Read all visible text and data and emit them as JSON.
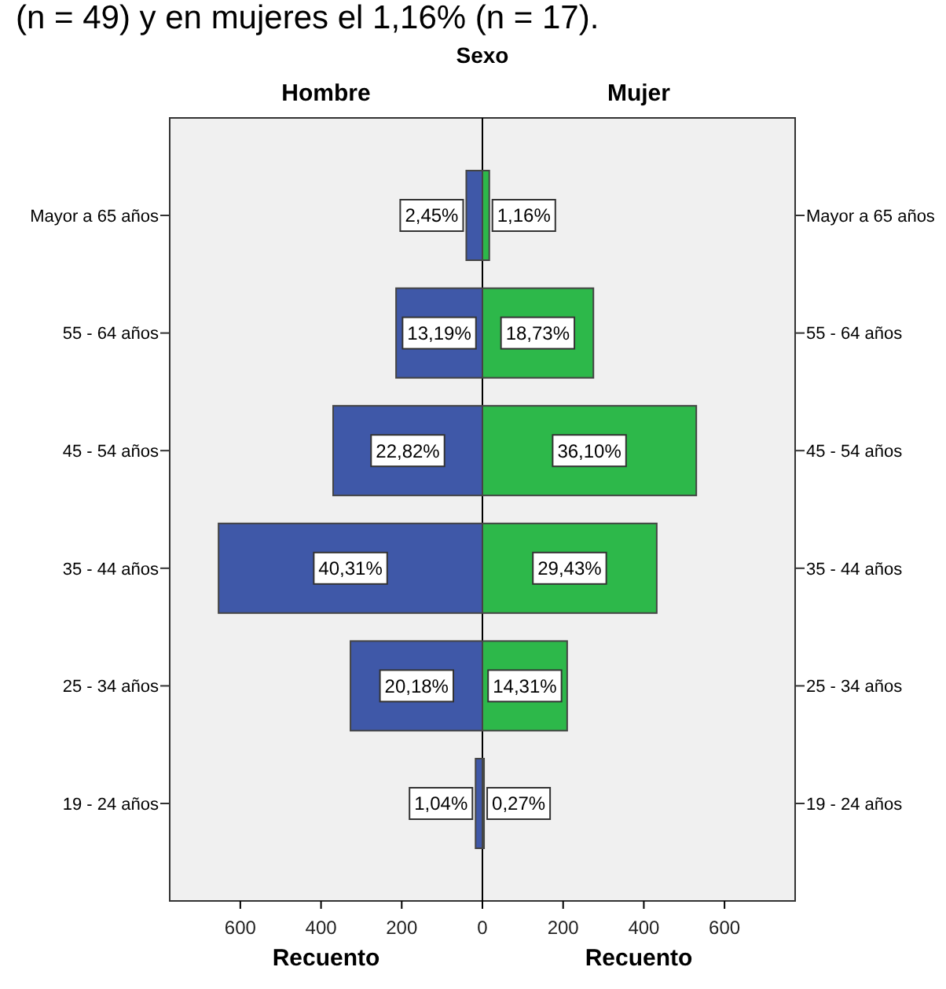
{
  "chart_data": [
    {
      "type": "bar",
      "orientation": "horizontal",
      "title": "Hombre",
      "categories": [
        "Mayor a 65 años",
        "55 - 64 años",
        "45 - 54 años",
        "35 - 44 años",
        "25 - 34 años",
        "19 - 24 años"
      ],
      "values": [
        40,
        214,
        370,
        654,
        327,
        17
      ],
      "color": "#3f58a8",
      "xlim": [
        775,
        0
      ],
      "xticks": [
        600,
        400,
        200,
        {
          "value": 0,
          "label": null
        }
      ],
      "xlabel": "Recuento",
      "annotations": [
        "(n = 49) y en mujeres el 1,16% (n = 17).",
        "Sexo",
        {
          "text": "2,45%",
          "x": 40,
          "y": "Mayor a 65 años"
        },
        {
          "text": "13,19%",
          "x": 107,
          "y": "55 - 64 años"
        },
        {
          "text": "22,82%",
          "x": 185,
          "y": "45 - 54 años"
        },
        {
          "text": "40,31%",
          "x": 327,
          "y": "35 - 44 años"
        },
        {
          "text": "20,18%",
          "x": 163,
          "y": "25 - 34 años"
        },
        {
          "text": "1,04%",
          "x": 17,
          "y": "19 - 24 años"
        }
      ]
    },
    {
      "type": "bar",
      "orientation": "horizontal",
      "title": "Mujer",
      "categories": [
        "Mayor a 65 años",
        "55 - 64 años",
        "45 - 54 años",
        "35 - 44 años",
        "25 - 34 años",
        "19 - 24 años"
      ],
      "values": [
        17,
        275,
        530,
        432,
        210,
        4
      ],
      "color": "#2db84a",
      "xlim": [
        0,
        775
      ],
      "xticks": [
        0,
        200,
        400,
        600
      ],
      "xlabel": "Recuento",
      "annotations": [
        {
          "text": "1,16%",
          "x": 17,
          "y": "Mayor a 65 años"
        },
        {
          "text": "18,73%",
          "x": 137,
          "y": "55 - 64 años"
        },
        {
          "text": "36,10%",
          "x": 265,
          "y": "45 - 54 años"
        },
        {
          "text": "29,43%",
          "x": 216,
          "y": "35 - 44 años"
        },
        {
          "text": "14,31%",
          "x": 105,
          "y": "25 - 34 años"
        },
        {
          "text": "0,27%",
          "x": 4,
          "y": "19 - 24 años"
        }
      ]
    }
  ]
}
